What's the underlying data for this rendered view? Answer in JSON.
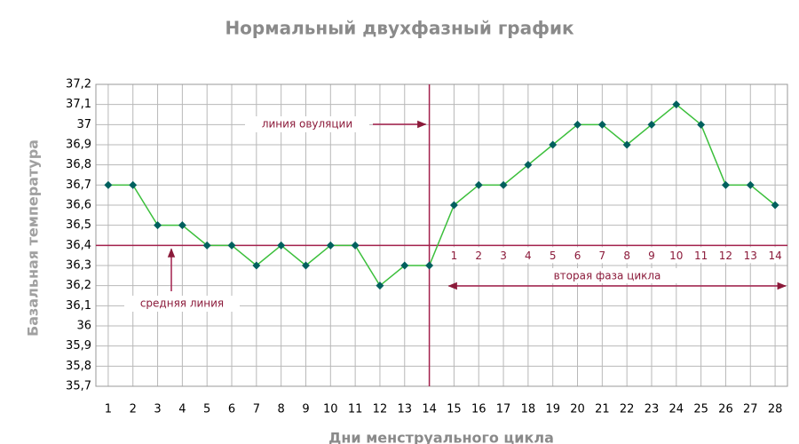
{
  "chart_data": {
    "type": "line",
    "title": "Нормальный двухфазный график",
    "y_label": "Базальная температура",
    "x_label": "Дни менструального цикла",
    "categories": [
      "1",
      "2",
      "3",
      "4",
      "5",
      "6",
      "7",
      "8",
      "9",
      "10",
      "11",
      "12",
      "13",
      "14",
      "15",
      "16",
      "17",
      "18",
      "19",
      "20",
      "21",
      "22",
      "23",
      "24",
      "25",
      "26",
      "27",
      "28"
    ],
    "series": [
      {
        "name": "Базальная температура",
        "color": "#3cbf3c",
        "marker_color": "#00605e",
        "values": [
          36.7,
          36.7,
          36.5,
          36.5,
          36.4,
          36.4,
          36.3,
          36.4,
          36.3,
          36.4,
          36.4,
          36.2,
          36.3,
          36.3,
          36.6,
          36.7,
          36.7,
          36.8,
          36.9,
          37.0,
          37.0,
          36.9,
          37.0,
          37.1,
          37.0,
          36.7,
          36.7,
          36.6
        ]
      }
    ],
    "ylim": [
      35.7,
      37.2
    ],
    "yticks": [
      {
        "value": 35.7,
        "label": "35,7"
      },
      {
        "value": 35.8,
        "label": "35,8"
      },
      {
        "value": 35.9,
        "label": "35,9"
      },
      36,
      {
        "value": 36.1,
        "label": "36,1"
      },
      {
        "value": 36.2,
        "label": "36,2"
      },
      {
        "value": 36.3,
        "label": "36,3"
      },
      {
        "value": 36.4,
        "label": "36,4"
      },
      {
        "value": 36.5,
        "label": "36,5"
      },
      {
        "value": 36.6,
        "label": "36,6"
      },
      {
        "value": 36.7,
        "label": "36,7"
      },
      {
        "value": 36.8,
        "label": "36,8"
      },
      {
        "value": 36.9,
        "label": "36,9"
      },
      37,
      {
        "value": 37.1,
        "label": "37,1"
      },
      {
        "value": 37.2,
        "label": "37,2"
      }
    ],
    "grid": true,
    "cover_line": 36.4,
    "cover_line_label": "средняя линия",
    "ovulation_day": 14,
    "ovulation_label": "линия овуляции",
    "phase2_label": "вторая фаза цикла",
    "phase2_days": [
      1,
      2,
      3,
      4,
      5,
      6,
      7,
      8,
      9,
      10,
      11,
      12,
      13,
      14
    ],
    "annotation_color": "#a3204c"
  }
}
